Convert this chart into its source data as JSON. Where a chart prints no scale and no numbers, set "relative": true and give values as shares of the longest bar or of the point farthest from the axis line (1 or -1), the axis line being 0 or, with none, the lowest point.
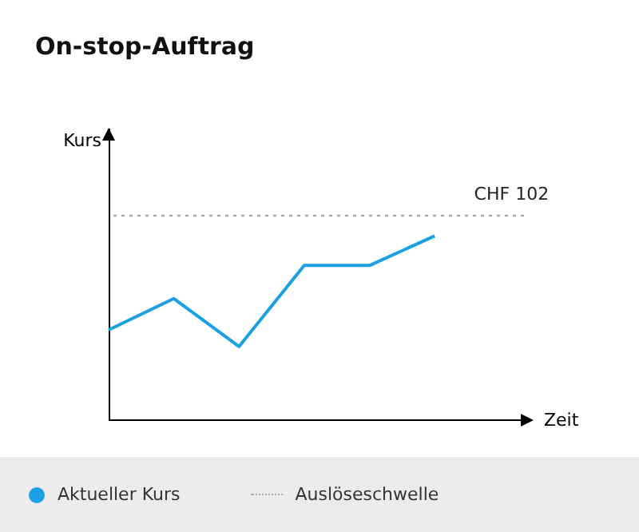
{
  "chart_data": {
    "type": "line",
    "title": "On-stop-Auftrag",
    "xlabel": "Zeit",
    "ylabel": "Kurs",
    "relative": true,
    "categories": [
      null,
      null,
      null,
      null,
      null,
      null
    ],
    "legend": "bottom",
    "series": [
      {
        "name": "Aktueller Kurs",
        "color": "#1ba1e2",
        "values": [
          0.49,
          0.66,
          0.4,
          0.84,
          0.84,
          1
        ]
      }
    ],
    "ref_lines": [
      {
        "axis": "y",
        "value": 1.11,
        "label": "Auslöseschwelle",
        "color": "#aaaaaa",
        "line_style": "dotted"
      }
    ],
    "annotations": [
      "CHF 102"
    ]
  }
}
